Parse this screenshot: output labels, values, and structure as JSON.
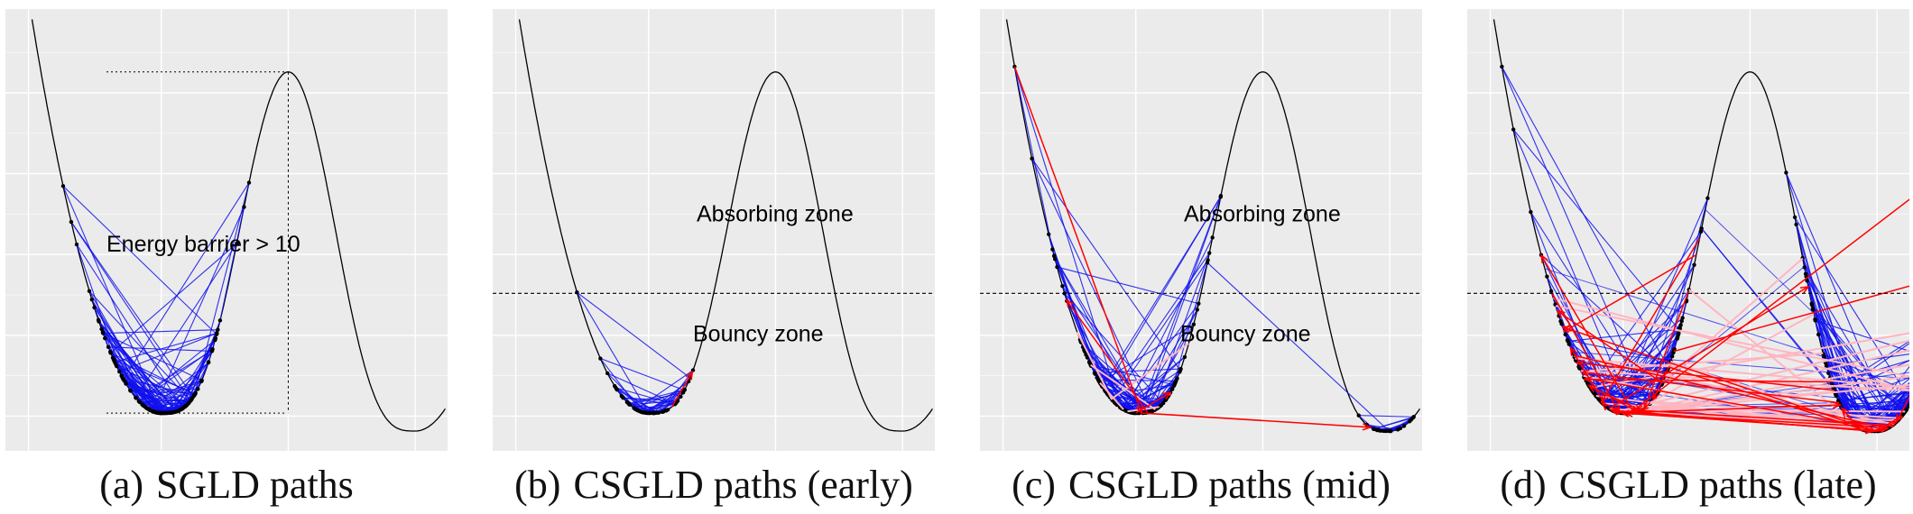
{
  "chart_data": [
    {
      "type": "line",
      "caption_tag": "(a)",
      "caption": "SGLD paths",
      "annotations": [
        "Energy barrier > 10"
      ],
      "show_barrier": true,
      "show_zone_line": false,
      "colors": {
        "path": "#1010ee",
        "reject": "#ff0000",
        "faint": "#ffb6c1",
        "curve": "#000000"
      },
      "mode_counts": {
        "left": 160,
        "right": 0
      },
      "red_jumps": 0,
      "pink_jumps": 0,
      "extreme_points": [
        -0.85,
        0.15
      ],
      "grid": true
    },
    {
      "type": "line",
      "caption_tag": "(b)",
      "caption": "CSGLD paths (early)",
      "annotations": [
        "Absorbing zone",
        "Bouncy zone"
      ],
      "show_barrier": false,
      "show_zone_line": true,
      "colors": {
        "path": "#1010ee",
        "reject": "#ff0000",
        "faint": "#ffb6c1",
        "curve": "#000000"
      },
      "mode_counts": {
        "left": 60,
        "right": 0
      },
      "red_jumps": 1,
      "pink_jumps": 0,
      "extreme_points": [
        -0.62,
        0.38
      ],
      "grid": true
    },
    {
      "type": "line",
      "caption_tag": "(c)",
      "caption": "CSGLD paths (mid)",
      "annotations": [
        "Absorbing zone",
        "Bouncy zone"
      ],
      "show_barrier": false,
      "show_zone_line": true,
      "colors": {
        "path": "#1010ee",
        "reject": "#ff0000",
        "faint": "#ffb6c1",
        "curve": "#000000"
      },
      "mode_counts": {
        "left": 150,
        "right": 25
      },
      "red_jumps": 4,
      "pink_jumps": 6,
      "extreme_points": [
        -1.05,
        0.38,
        0.62
      ],
      "grid": true
    },
    {
      "type": "line",
      "caption_tag": "(d)",
      "caption": "CSGLD paths (late)",
      "annotations": [],
      "show_barrier": false,
      "show_zone_line": true,
      "colors": {
        "path": "#1010ee",
        "reject": "#ff0000",
        "faint": "#ffb6c1",
        "curve": "#000000"
      },
      "mode_counts": {
        "left": 200,
        "right": 200
      },
      "red_jumps": 40,
      "pink_jumps": 30,
      "extreme_points": [
        -1.05,
        0.55,
        0.68,
        2.18
      ],
      "grid": true
    }
  ]
}
